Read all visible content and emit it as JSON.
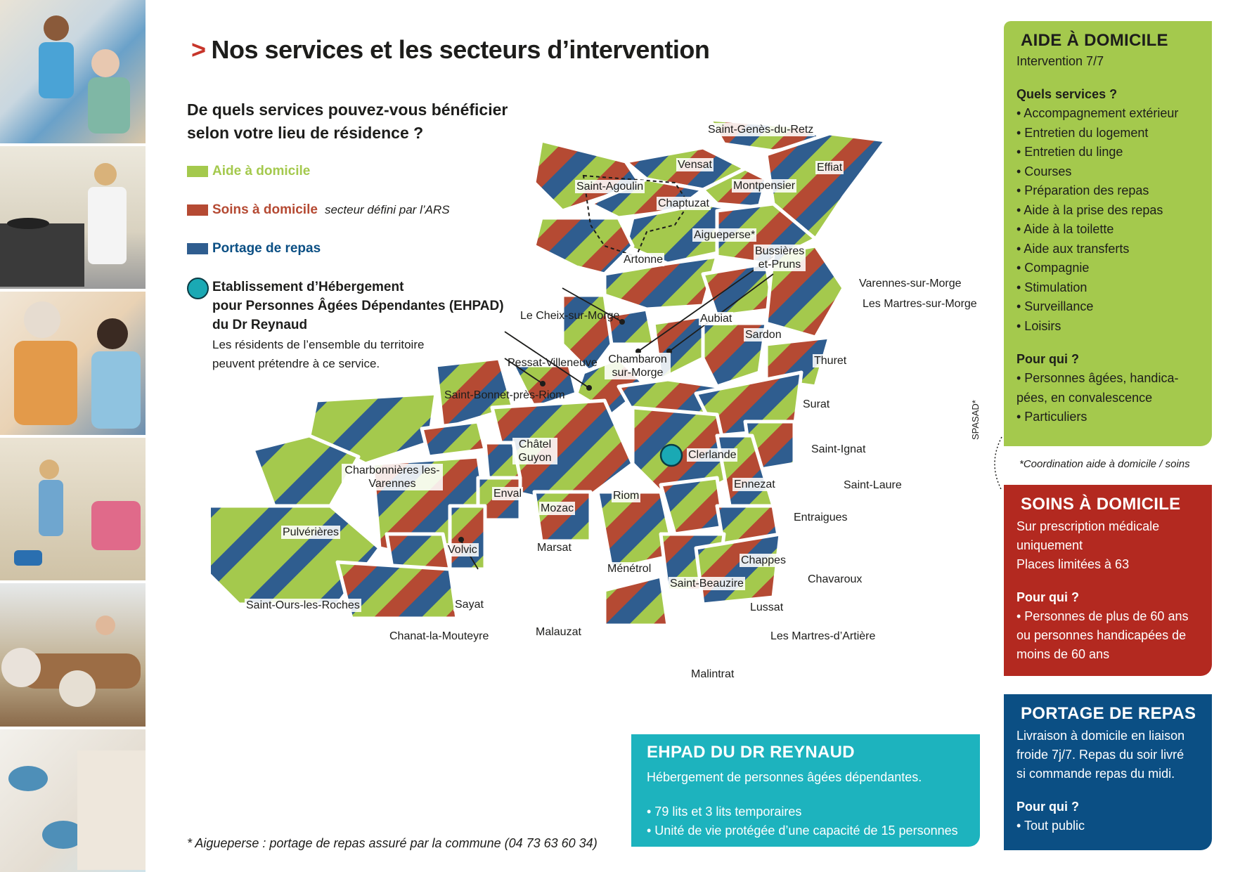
{
  "title": {
    "chevron": ">",
    "text": "Nos services et les secteurs d’intervention"
  },
  "question": "De quels services pouvez-vous bénéficier selon votre lieu de résidence ?",
  "legend": {
    "aide": {
      "label": "Aide à domicile",
      "color": "#a4c94d"
    },
    "soins": {
      "label": "Soins à domicile",
      "note": "secteur défini par l’ARS",
      "color": "#b54a33"
    },
    "portage": {
      "label": "Portage de repas",
      "color": "#2f5d8f"
    },
    "ehpad": {
      "line1": "Etablissement d’Hébergement",
      "line2": "pour Personnes Âgées Dépendantes (EHPAD)",
      "line3": "du Dr Reynaud",
      "desc1": "Les résidents de l’ensemble du territoire",
      "desc2": "peuvent prétendre à ce service."
    }
  },
  "map": {
    "communes": [
      "Saint-Genès-du-Retz",
      "Vensat",
      "Effiat",
      "Saint-Agoulin",
      "Montpensier",
      "Chaptuzat",
      "Aigueperse*",
      "Bussières et-Pruns",
      "Artonne",
      "Aubiat",
      "Sardon",
      "Thuret",
      "Le Cheix-sur-Morge",
      "Varennes-sur-Morge",
      "Les Martres-sur-Morge",
      "Pessat-Villeneuve",
      "Chambaron sur-Morge",
      "Saint-Bonnet-près-Riom",
      "Surat",
      "Châtel Guyon",
      "Clerlande",
      "Saint-Ignat",
      "Charbonnières les-Varennes",
      "Enval",
      "Riom",
      "Ennezat",
      "Saint-Laure",
      "Mozac",
      "Entraigues",
      "Pulvérières",
      "Volvic",
      "Marsat",
      "Ménétrol",
      "Chappes",
      "Saint-Beauzire",
      "Chavaroux",
      "Saint-Ours-les-Roches",
      "Sayat",
      "Lussat",
      "Malauzat",
      "Chanat-la-Mouteyre",
      "Les Martres-d’Artière",
      "Malintrat"
    ]
  },
  "footnote": "* Aigueperse : portage de repas assuré par la commune (04 73 63 60 34)",
  "panels": {
    "aide": {
      "title": "AIDE À DOMICILE",
      "sub": "Intervention 7/7",
      "services_title": "Quels services ?",
      "services": [
        "• Accompagnement extérieur",
        "• Entretien du logement",
        "• Entretien du linge",
        "• Courses",
        "• Préparation des repas",
        "• Aide à la prise des repas",
        "• Aide à la toilette",
        "• Aide aux transferts",
        "• Compagnie",
        "• Stimulation",
        "• Surveillance",
        "• Loisirs"
      ],
      "who_title": "Pour qui ?",
      "who": [
        "• Personnes âgées, handica-",
        "pées, en convalescence",
        "• Particuliers"
      ],
      "color": "#a4c94d"
    },
    "spasad": "SPASAD*",
    "coordination": "*Coordination aide à domicile / soins",
    "soins": {
      "title": "SOINS À DOMICILE",
      "lines": [
        "Sur prescription médicale",
        "uniquement",
        "Places limitées à 63"
      ],
      "who_title": "Pour qui ?",
      "who": [
        "• Personnes de plus de 60 ans",
        "ou personnes handicapées de",
        "moins de 60 ans"
      ],
      "color": "#b32920"
    },
    "portage": {
      "title": "PORTAGE DE REPAS",
      "lines": [
        "Livraison à domicile en liaison",
        "froide 7j/7. Repas du soir livré",
        "si commande repas du midi."
      ],
      "who_title": "Pour qui ?",
      "who": [
        "• Tout public"
      ],
      "color": "#0b4f84"
    },
    "ehpad": {
      "title": "EHPAD DU DR REYNAUD",
      "desc": "Hébergement de personnes âgées dépendantes.",
      "items": [
        "• 79 lits et 3 lits temporaires",
        "• Unité de vie protégée d’une capacité de 15 personnes"
      ],
      "color": "#1db3be"
    }
  }
}
